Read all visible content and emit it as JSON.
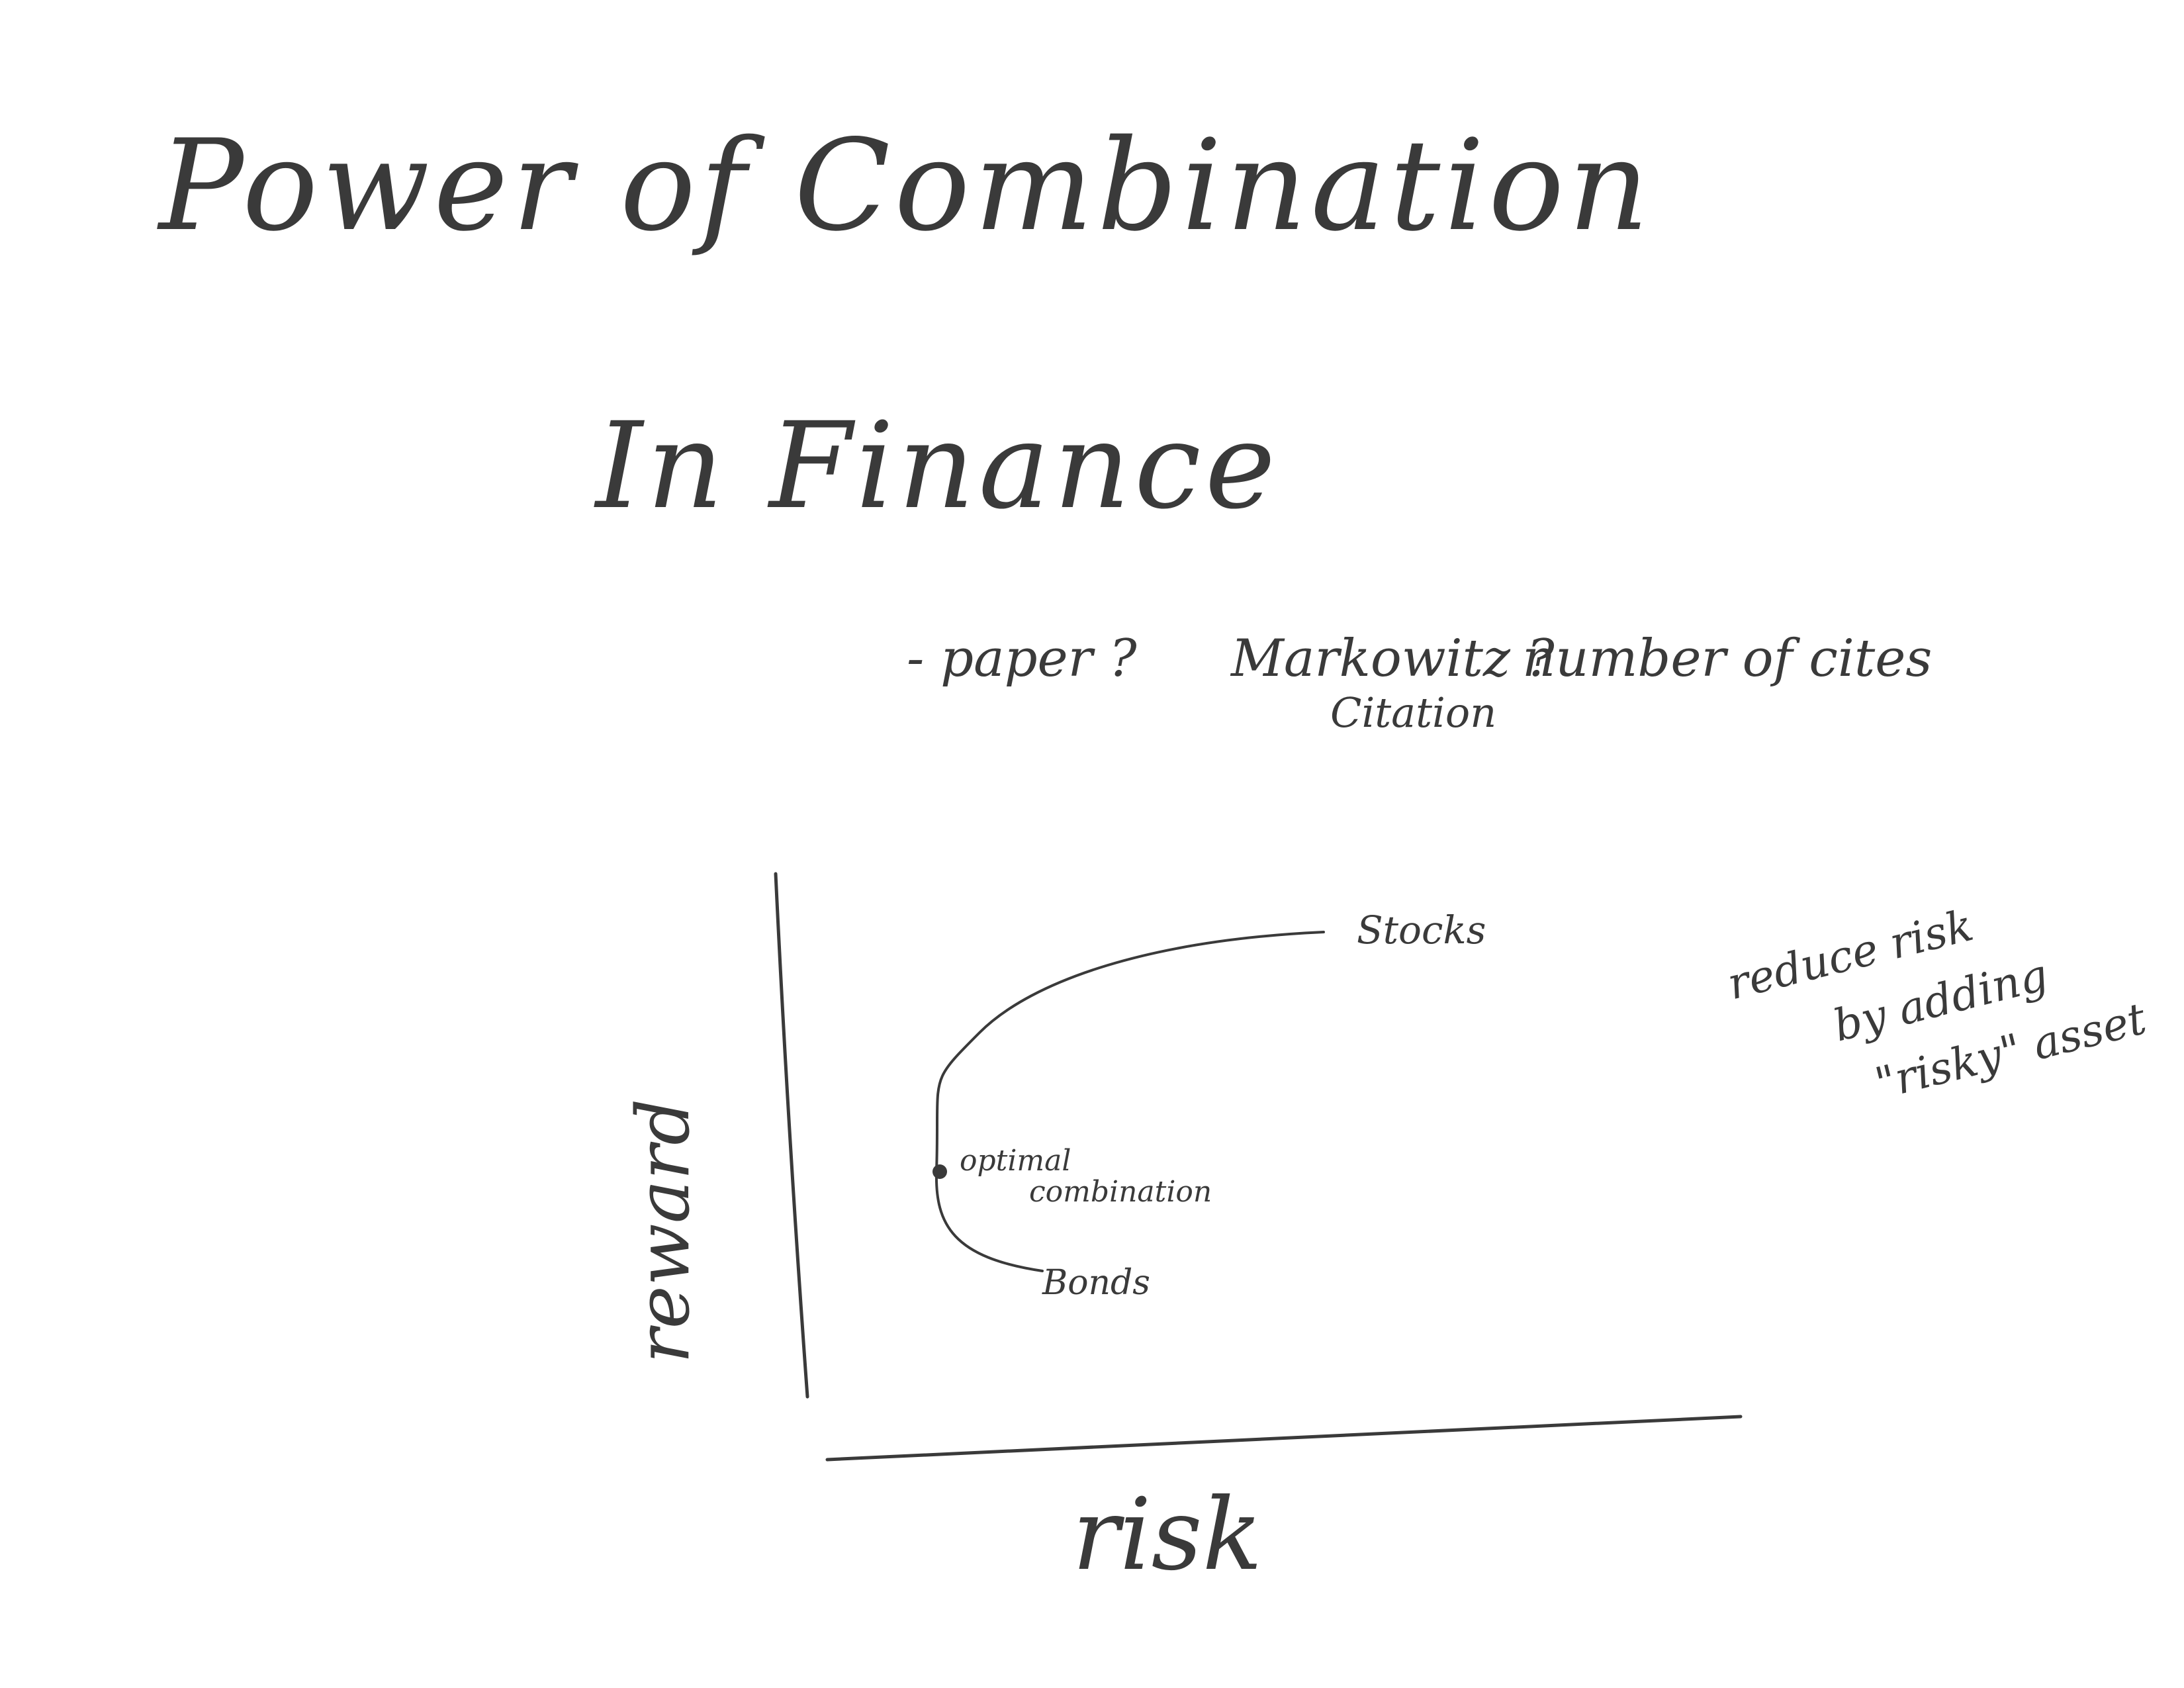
{
  "page": {
    "title": "Power of Combination",
    "subtitle": "In Finance",
    "questions": [
      "- paper ?",
      "Markowitz ?",
      "Citation",
      "number of cites"
    ],
    "side_note": [
      "reduce risk",
      "by adding",
      "\"risky\" asset"
    ]
  },
  "diagram": {
    "x_axis_label": "risk",
    "y_axis_label": "reward",
    "point_labels": {
      "stocks": "Stocks",
      "bonds": "Bonds",
      "optimal_line1": "optimal",
      "optimal_line2": "combination"
    }
  },
  "colors": {
    "ink": "#3a3a3a",
    "paper": "#ffffff"
  }
}
